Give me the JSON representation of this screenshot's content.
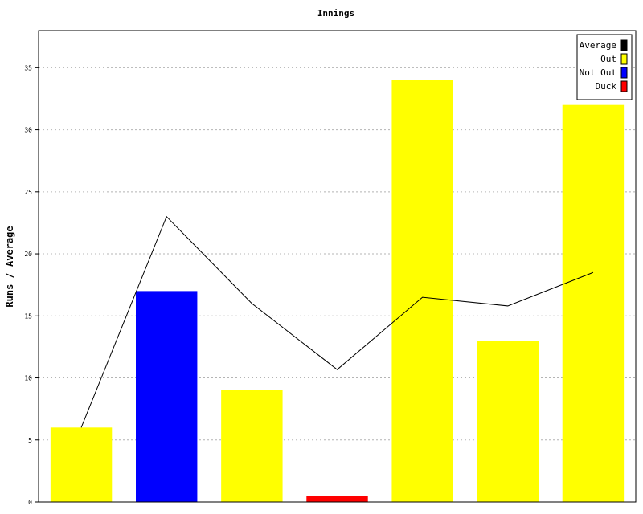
{
  "chart_data": {
    "type": "bar",
    "title": "Innings",
    "xlabel": "",
    "ylabel": "Runs / Average",
    "ylim": [
      0,
      38
    ],
    "yticks": [
      0,
      5,
      10,
      15,
      20,
      25,
      30,
      35
    ],
    "grid": true,
    "legend_position": "top-right",
    "innings": [
      {
        "runs": 6,
        "status": "Out"
      },
      {
        "runs": 17,
        "status": "Not Out"
      },
      {
        "runs": 9,
        "status": "Out"
      },
      {
        "runs": 0.5,
        "status": "Duck"
      },
      {
        "runs": 34,
        "status": "Out"
      },
      {
        "runs": 13,
        "status": "Out"
      },
      {
        "runs": 32,
        "status": "Out"
      }
    ],
    "average": [
      6,
      23,
      16,
      10.67,
      16.5,
      15.8,
      18.5
    ],
    "legend": [
      {
        "label": "Average",
        "color": "#000000"
      },
      {
        "label": "Out",
        "color": "#ffff00"
      },
      {
        "label": "Not Out",
        "color": "#0000ff"
      },
      {
        "label": "Duck",
        "color": "#ff0000"
      }
    ],
    "colors": {
      "Out": "#ffff00",
      "Not Out": "#0000ff",
      "Duck": "#ff0000",
      "Average": "#000000"
    }
  }
}
